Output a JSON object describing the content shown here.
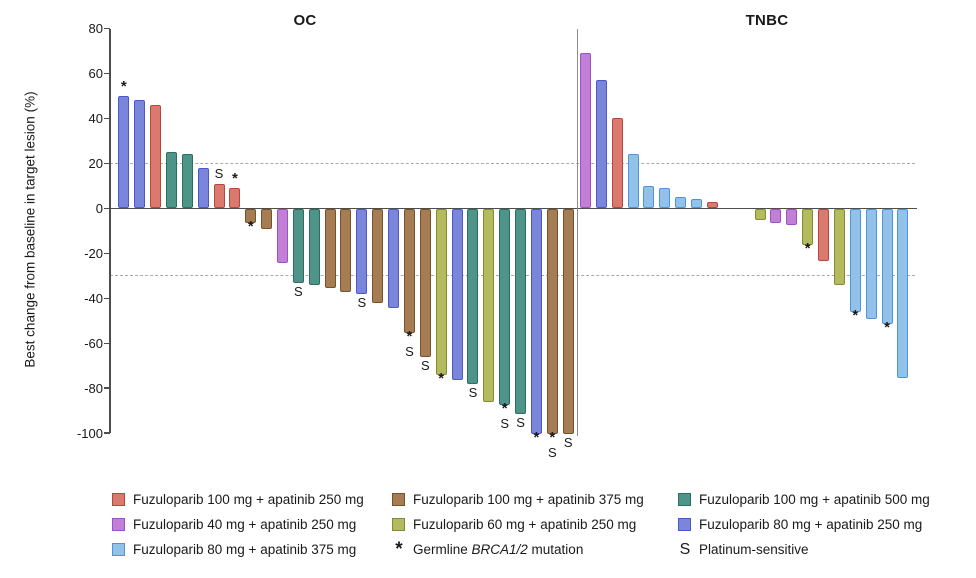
{
  "chart_data": {
    "type": "bar",
    "subtype": "waterfall",
    "ylabel": "Best change from baseline in target lesion (%)",
    "ylim": [
      -100,
      80
    ],
    "yticks": [
      80,
      60,
      40,
      20,
      0,
      -20,
      -40,
      -60,
      -80,
      -100
    ],
    "reference_lines": [
      20,
      -30
    ],
    "grid": "off",
    "groups": {
      "f100a250": {
        "label": "Fuzuloparib 100 mg + apatinib 250 mg",
        "fill": "#DA7A6F",
        "border": "#B5473D"
      },
      "f40a250": {
        "label": "Fuzuloparib 40 mg + apatinib 250 mg",
        "fill": "#C17FD5",
        "border": "#9C51C6"
      },
      "f80a375": {
        "label": "Fuzuloparib 80 mg + apatinib 375 mg",
        "fill": "#92C1EA",
        "border": "#4E94DC"
      },
      "f100a375": {
        "label": "Fuzuloparib 100 mg + apatinib 375 mg",
        "fill": "#A67C52",
        "border": "#74522A"
      },
      "f60a250": {
        "label": "Fuzuloparib 60 mg + apatinib 250 mg",
        "fill": "#B4BA5E",
        "border": "#828A33"
      },
      "f100a500": {
        "label": "Fuzuloparib 100 mg + apatinib 500 mg",
        "fill": "#4E9488",
        "border": "#2B6E62"
      },
      "f80a250": {
        "label": "Fuzuloparib 80 mg + apatinib 250 mg",
        "fill": "#7B86DB",
        "border": "#4A57C8"
      }
    },
    "panels": [
      {
        "title": "OC",
        "bars": [
          {
            "value": 50,
            "group": "f80a250",
            "marks": [
              "*"
            ]
          },
          {
            "value": 48,
            "group": "f80a250"
          },
          {
            "value": 46,
            "group": "f100a250"
          },
          {
            "value": 25,
            "group": "f100a500"
          },
          {
            "value": 24,
            "group": "f100a500"
          },
          {
            "value": 18,
            "group": "f80a250"
          },
          {
            "value": 11,
            "group": "f100a250",
            "marks": [
              "S"
            ]
          },
          {
            "value": 9,
            "group": "f100a250",
            "marks": [
              "*"
            ]
          },
          {
            "value": -6,
            "group": "f100a375",
            "marks": [
              "*"
            ]
          },
          {
            "value": -9,
            "group": "f100a375"
          },
          {
            "value": -24,
            "group": "f40a250"
          },
          {
            "value": -33,
            "group": "f100a500",
            "marks": [
              "S"
            ]
          },
          {
            "value": -34,
            "group": "f100a500"
          },
          {
            "value": -35,
            "group": "f100a375"
          },
          {
            "value": -37,
            "group": "f100a375"
          },
          {
            "value": -38,
            "group": "f80a250",
            "marks": [
              "S"
            ]
          },
          {
            "value": -42,
            "group": "f100a375"
          },
          {
            "value": -44,
            "group": "f80a250"
          },
          {
            "value": -55,
            "group": "f100a375",
            "marks": [
              "*",
              "S"
            ]
          },
          {
            "value": -66,
            "group": "f100a375",
            "marks": [
              "S"
            ]
          },
          {
            "value": -74,
            "group": "f60a250",
            "marks": [
              "*"
            ]
          },
          {
            "value": -76,
            "group": "f80a250"
          },
          {
            "value": -78,
            "group": "f100a500",
            "marks": [
              "S"
            ]
          },
          {
            "value": -86,
            "group": "f60a250"
          },
          {
            "value": -87,
            "group": "f100a500",
            "marks": [
              "*",
              "S"
            ]
          },
          {
            "value": -91,
            "group": "f100a500",
            "marks": [
              "S"
            ]
          },
          {
            "value": -100,
            "group": "f80a250",
            "marks": [
              "*"
            ]
          },
          {
            "value": -100,
            "group": "f100a375",
            "marks": [
              "*",
              "S"
            ]
          },
          {
            "value": -100,
            "group": "f100a375",
            "marks": [
              "S"
            ]
          }
        ]
      },
      {
        "title": "TNBC",
        "bars": [
          {
            "value": 69,
            "group": "f40a250"
          },
          {
            "value": 57,
            "group": "f80a250"
          },
          {
            "value": 40,
            "group": "f100a250"
          },
          {
            "value": 24,
            "group": "f80a375"
          },
          {
            "value": 10,
            "group": "f80a375"
          },
          {
            "value": 9,
            "group": "f80a375"
          },
          {
            "value": 5,
            "group": "f80a375"
          },
          {
            "value": 4,
            "group": "f80a375"
          },
          {
            "value": 3,
            "group": "f100a250"
          },
          {
            "gap": true
          },
          {
            "gap": true
          },
          {
            "value": -5,
            "group": "f60a250"
          },
          {
            "value": -6,
            "group": "f40a250"
          },
          {
            "value": -7,
            "group": "f40a250"
          },
          {
            "value": -16,
            "group": "f60a250",
            "marks": [
              "*"
            ]
          },
          {
            "value": -23,
            "group": "f100a250"
          },
          {
            "value": -34,
            "group": "f60a250"
          },
          {
            "value": -46,
            "group": "f80a375",
            "marks": [
              "*"
            ]
          },
          {
            "value": -49,
            "group": "f80a375"
          },
          {
            "value": -51,
            "group": "f80a375",
            "marks": [
              "*"
            ]
          },
          {
            "value": -75,
            "group": "f80a375"
          }
        ]
      }
    ]
  },
  "legend": {
    "columns": [
      {
        "items": [
          {
            "swatch": "f100a250"
          },
          {
            "swatch": "f40a250"
          },
          {
            "swatch": "f80a375"
          }
        ]
      },
      {
        "items": [
          {
            "swatch": "f100a375"
          },
          {
            "swatch": "f60a250"
          },
          {
            "symbol": "*",
            "prefix": "Germline ",
            "italic": "BRCA1/2",
            "suffix": " mutation"
          }
        ]
      },
      {
        "items": [
          {
            "swatch": "f100a500"
          },
          {
            "swatch": "f80a250"
          },
          {
            "symbol": "S",
            "label": "Platinum-sensitive"
          }
        ]
      }
    ]
  }
}
